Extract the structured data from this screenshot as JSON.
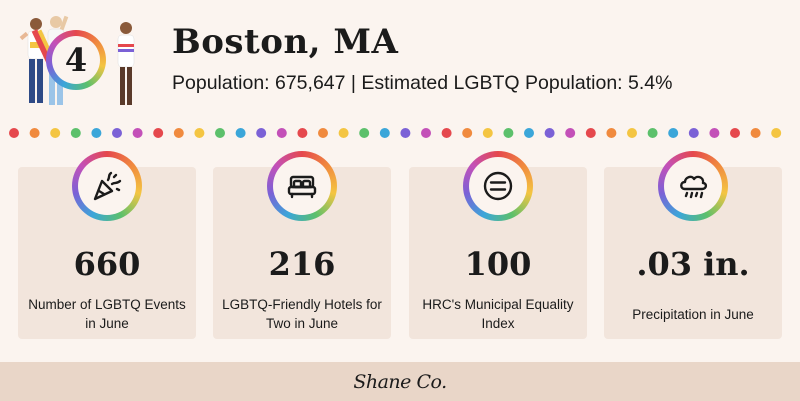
{
  "header": {
    "rank": "4",
    "city": "Boston, MA",
    "population_line": "Population: 675,647 | Estimated LGBTQ Population: 5.4%"
  },
  "stats": [
    {
      "value": "660",
      "label": "Number of LGBTQ Events in June",
      "icon": "party-popper-icon"
    },
    {
      "value": "216",
      "label": "LGBTQ-Friendly Hotels for Two in June",
      "icon": "bed-icon"
    },
    {
      "value": "100",
      "label": "HRC's Municipal Equality Index",
      "icon": "equal-sign-icon"
    },
    {
      "value": ".03 in.",
      "label": "Precipitation in June",
      "icon": "rain-cloud-icon"
    }
  ],
  "footer": {
    "brand": "Shane Co."
  },
  "colors": {
    "background": "#fbf4ef",
    "card": "#f2e5dc",
    "footer": "#e9d6c8",
    "text": "#1b1b1b",
    "rainbow": [
      "#e5484d",
      "#f08a3e",
      "#f4c542",
      "#5cc06b",
      "#3ba6d9",
      "#7b61d6",
      "#c350b8"
    ]
  }
}
